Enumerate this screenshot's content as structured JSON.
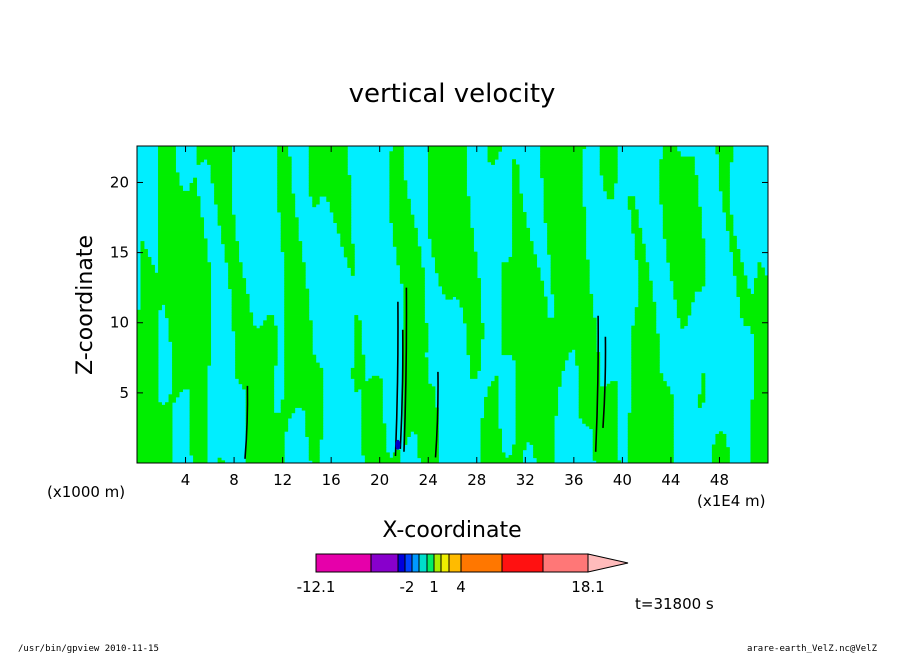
{
  "chart_data": {
    "type": "heatmap",
    "title": "vertical velocity",
    "xlabel": "X-coordinate",
    "ylabel": "Z-coordinate",
    "x_unit_label": "(x1E4 m)",
    "y_unit_label": "(x1000 m)",
    "xlim": [
      0,
      52
    ],
    "ylim": [
      0,
      22.6
    ],
    "x_ticks": [
      4,
      8,
      12,
      16,
      20,
      24,
      28,
      32,
      36,
      40,
      44,
      48
    ],
    "y_ticks": [
      5,
      10,
      15,
      20
    ],
    "grid": false,
    "field_colors": {
      "negative_small": "#00eeff",
      "positive_small": "#00ee00",
      "strong_negative": "#0000cc",
      "contour": "#000000"
    },
    "colorbar": {
      "levels_shown": [
        "-12.1",
        "-2",
        "1",
        "4",
        "18.1"
      ],
      "boundaries": [
        -12.1,
        -8.4,
        -4.7,
        -2,
        -1,
        0,
        1,
        2,
        3,
        4,
        8,
        12,
        15.1,
        18.1
      ],
      "colors": [
        "#e600aa",
        "#8800cc",
        "#0000dd",
        "#0044ff",
        "#0099ff",
        "#00ddcc",
        "#00ee66",
        "#aaee00",
        "#eeee00",
        "#ffbb00",
        "#ff7700",
        "#ff1111",
        "#ff7777"
      ],
      "extend": "max",
      "extend_color": "#ffbbbb"
    },
    "time_label": "t=31800 s"
  },
  "footer": {
    "left": "/usr/bin/gpview   2010-11-15",
    "right": "arare-earth_VelZ.nc@VelZ"
  }
}
